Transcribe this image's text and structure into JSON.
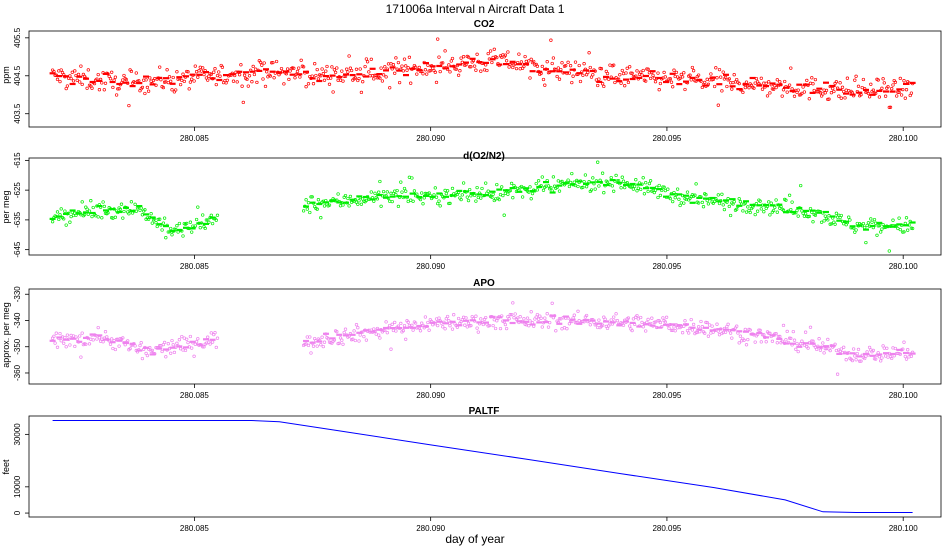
{
  "figure": {
    "title": "171006a   Interval n Aircraft Data 1",
    "xlabel": "day of year"
  },
  "chart_data": [
    {
      "type": "scatter",
      "title": "CO2",
      "ylabel": "ppm",
      "xlim": [
        280.0815,
        280.1008
      ],
      "ylim": [
        403.15,
        405.68
      ],
      "yticks": [
        403.5,
        404.5,
        405.5
      ],
      "xticks": [
        280.085,
        280.09,
        280.095,
        280.1
      ],
      "color": "#ff0000",
      "x_range": [
        280.082,
        280.1002
      ],
      "gap": null,
      "mean_anchors": [
        [
          280.082,
          404.5
        ],
        [
          280.0835,
          404.3
        ],
        [
          280.085,
          404.45
        ],
        [
          280.0865,
          404.6
        ],
        [
          280.088,
          404.5
        ],
        [
          280.089,
          404.6
        ],
        [
          280.09,
          404.75
        ],
        [
          280.0915,
          404.9
        ],
        [
          280.093,
          404.6
        ],
        [
          280.0945,
          404.45
        ],
        [
          280.096,
          404.35
        ],
        [
          280.0975,
          404.2
        ],
        [
          280.099,
          404.1
        ],
        [
          280.1002,
          404.15
        ]
      ],
      "noise": 0.28
    },
    {
      "type": "scatter",
      "title": "d(O2/N2)",
      "ylabel": "per meg",
      "xlim": [
        280.0815,
        280.1008
      ],
      "ylim": [
        -646.8,
        -614.2
      ],
      "yticks": [
        -615,
        -625,
        -635,
        -645
      ],
      "xticks": [
        280.085,
        280.09,
        280.095,
        280.1
      ],
      "color": "#00ee00",
      "x_range": [
        280.082,
        280.1002
      ],
      "gap": [
        280.0855,
        280.0873
      ],
      "mean_anchors": [
        [
          280.082,
          -634
        ],
        [
          280.083,
          -632
        ],
        [
          280.0838,
          -631
        ],
        [
          280.0845,
          -639
        ],
        [
          280.0855,
          -635
        ],
        [
          280.0873,
          -630
        ],
        [
          280.088,
          -629
        ],
        [
          280.089,
          -627
        ],
        [
          280.09,
          -627
        ],
        [
          280.0915,
          -626
        ],
        [
          280.093,
          -623
        ],
        [
          280.094,
          -622
        ],
        [
          280.0955,
          -628
        ],
        [
          280.097,
          -630
        ],
        [
          280.098,
          -632
        ],
        [
          280.099,
          -637
        ],
        [
          280.1002,
          -637
        ]
      ],
      "noise": 2.6
    },
    {
      "type": "scatter",
      "title": "APO",
      "ylabel": "approx. per meg",
      "xlim": [
        280.0815,
        280.1008
      ],
      "ylim": [
        -364.2,
        -328.0
      ],
      "yticks": [
        -330,
        -340,
        -350,
        -360
      ],
      "xticks": [
        280.085,
        280.09,
        280.095,
        280.1
      ],
      "color": "#ee82ee",
      "x_range": [
        280.082,
        280.1002
      ],
      "gap": [
        280.0855,
        280.0873
      ],
      "mean_anchors": [
        [
          280.082,
          -348
        ],
        [
          280.083,
          -346
        ],
        [
          280.084,
          -352
        ],
        [
          280.0855,
          -347
        ],
        [
          280.0873,
          -348
        ],
        [
          280.0885,
          -345
        ],
        [
          280.09,
          -341
        ],
        [
          280.0915,
          -340
        ],
        [
          280.093,
          -340
        ],
        [
          280.0945,
          -341
        ],
        [
          280.096,
          -343
        ],
        [
          280.097,
          -346
        ],
        [
          280.098,
          -349
        ],
        [
          280.099,
          -353
        ],
        [
          280.1002,
          -352
        ]
      ],
      "noise": 3.0
    },
    {
      "type": "line",
      "title": "PALTF",
      "ylabel": "feet",
      "xlim": [
        280.0815,
        280.1008
      ],
      "ylim": [
        -1500,
        37000
      ],
      "yticks": [
        0,
        10000,
        30000
      ],
      "xticks": [
        280.085,
        280.09,
        280.095,
        280.1
      ],
      "color": "#0000ff",
      "x": [
        280.082,
        280.0855,
        280.0862,
        280.0868,
        280.088,
        280.09,
        280.092,
        280.094,
        280.096,
        280.0975,
        280.0983,
        280.099,
        280.1002
      ],
      "y": [
        35300,
        35300,
        35300,
        34800,
        31500,
        26000,
        20600,
        15100,
        9700,
        5000,
        500,
        200,
        200
      ]
    }
  ]
}
